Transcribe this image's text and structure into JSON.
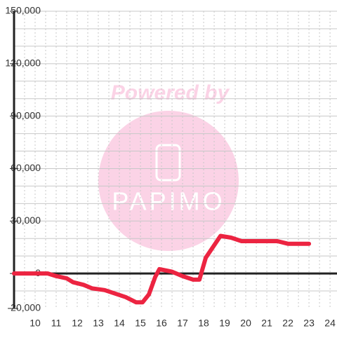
{
  "chart_data": {
    "type": "line",
    "x": [
      9,
      10.6,
      11,
      11.5,
      11.8,
      12.3,
      12.7,
      13.3,
      13.8,
      14.3,
      14.8,
      15.1,
      15.4,
      15.7,
      15.9,
      16.5,
      17,
      17.5,
      17.8,
      18.1,
      18.8,
      19.3,
      19.8,
      20.5,
      21.5,
      22,
      23
    ],
    "series": [
      {
        "name": "value",
        "color": "#ec2441",
        "values": [
          0,
          0,
          -1500,
          -2800,
          -5000,
          -6500,
          -8500,
          -9500,
          -11500,
          -13500,
          -16500,
          -16500,
          -12000,
          -2000,
          2500,
          1000,
          -1500,
          -3500,
          -3500,
          9000,
          21500,
          20500,
          18500,
          18500,
          18500,
          17000,
          17000
        ]
      }
    ],
    "xlim": [
      9,
      24.33
    ],
    "xticks": [
      10,
      11,
      12,
      13,
      14,
      15,
      16,
      17,
      18,
      19,
      20,
      21,
      22,
      23,
      24
    ],
    "xgrid": [
      9.5,
      10,
      10.5,
      11,
      11.5,
      12,
      12.5,
      13,
      13.5,
      14,
      14.5,
      15,
      15.5,
      16,
      16.5,
      17,
      17.5,
      18,
      18.5,
      19,
      19.5,
      20,
      20.5,
      21,
      21.5,
      22,
      22.5,
      23,
      23.5,
      24
    ],
    "ylim": [
      -20000,
      150000
    ],
    "yticks": [
      {
        "value": -20000,
        "label": "-20,000"
      },
      0,
      {
        "value": 30000,
        "label": "30,000"
      },
      {
        "value": 60000,
        "label": "60,000"
      },
      {
        "value": 90000,
        "label": "90,000"
      },
      {
        "value": 120000,
        "label": "120,000"
      },
      {
        "value": 150000,
        "label": "150,000"
      }
    ],
    "ygrid": [
      -10000,
      10000,
      20000,
      30000,
      40000,
      50000,
      60000,
      70000,
      80000,
      90000,
      100000,
      110000,
      120000,
      130000,
      140000,
      150000
    ],
    "grid": true
  },
  "watermark": {
    "text": "Powered by",
    "logo": "PAPIMO"
  }
}
